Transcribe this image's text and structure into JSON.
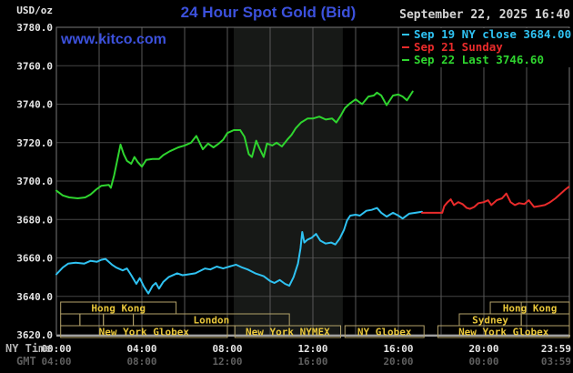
{
  "header": {
    "units_label": "USD/oz",
    "title": "24 Hour Spot Gold (Bid)",
    "title_color": "#3c51dc",
    "datetime": "September 22, 2025 16:40",
    "datetime_color": "#d5d5d5",
    "watermark": "www.kitco.com",
    "watermark_color": "#3c51dc"
  },
  "legend": {
    "items": [
      {
        "label": "Sep 19 NY close 3684.00",
        "color": "#2fc2f2"
      },
      {
        "label": "Sep 21 Sunday",
        "color": "#e92b2b"
      },
      {
        "label": "Sep 22 Last 3746.60",
        "color": "#2fd52f"
      }
    ]
  },
  "axes": {
    "y": {
      "label_color": "#e6e6e6",
      "ticks": [
        {
          "v": 3780,
          "label": "3780.0"
        },
        {
          "v": 3760,
          "label": "3760.0"
        },
        {
          "v": 3740,
          "label": "3740.0"
        },
        {
          "v": 3720,
          "label": "3720.0"
        },
        {
          "v": 3700,
          "label": "3700.0"
        },
        {
          "v": 3680,
          "label": "3680.0"
        },
        {
          "v": 3660,
          "label": "3660.0"
        },
        {
          "v": 3640,
          "label": "3640.0"
        },
        {
          "v": 3620,
          "label": "3620.0"
        }
      ]
    },
    "x": {
      "row1_label": "NY Time",
      "row1_color": "#b5b5b5",
      "row1_tick_color": "#e6e6e6",
      "row2_label": "GMT",
      "row2_color": "#5f5f5f",
      "row2_tick_color": "#5f5f5f",
      "ticks": [
        {
          "h": 0,
          "ny": "00:00",
          "gmt": "04:00"
        },
        {
          "h": 4,
          "ny": "04:00",
          "gmt": "08:00"
        },
        {
          "h": 8,
          "ny": "08:00",
          "gmt": "12:00"
        },
        {
          "h": 12,
          "ny": "12:00",
          "gmt": "16:00"
        },
        {
          "h": 16,
          "ny": "16:00",
          "gmt": "20:00"
        },
        {
          "h": 20,
          "ny": "20:00",
          "gmt": "00:00"
        },
        {
          "h": 23.983,
          "ny": "23:59",
          "gmt": "03:59"
        }
      ]
    }
  },
  "sessions": {
    "border_color": "#b3a26a",
    "label_color": "#e8c63a",
    "rows": [
      {
        "boxes": [
          {
            "start": 0.2,
            "end": 5.6,
            "label": "Hong Kong"
          },
          {
            "start": 20.3,
            "end": 24.0,
            "label": "Hong Kong",
            "divider": 21.75
          }
        ]
      },
      {
        "boxes": [
          {
            "start": 0.2,
            "end": 1.1,
            "label": ""
          },
          {
            "start": 1.1,
            "end": 2.2,
            "label": ""
          },
          {
            "start": 2.2,
            "end": 3.6,
            "label": ""
          },
          {
            "start": 3.6,
            "end": 10.9,
            "label": "London"
          },
          {
            "start": 18.85,
            "end": 21.75,
            "label": "Sydney"
          },
          {
            "start": 21.75,
            "end": 24.0,
            "label": ""
          }
        ]
      },
      {
        "boxes": [
          {
            "start": 0.2,
            "end": 8.0,
            "label": "New York Globex"
          },
          {
            "start": 8.35,
            "end": 13.3,
            "label": "New York NYMEX"
          },
          {
            "start": 13.5,
            "end": 17.2,
            "label": "NY Globex"
          },
          {
            "start": 17.85,
            "end": 24.0,
            "label": "New York Globex"
          }
        ]
      }
    ]
  },
  "chart_data": {
    "type": "line",
    "title": "24 Hour Spot Gold (Bid)",
    "xlabel": "NY Time (hours 00:00-23:59)",
    "ylabel": "USD/oz",
    "ylim": [
      3620,
      3780
    ],
    "xlim_hours": [
      0,
      24
    ],
    "grid": true,
    "grid_color": "#454545",
    "vgrid_color": "#585858",
    "border_color": "#787878",
    "baseline_color": "#a0a0a0",
    "band_color": "#171917",
    "highlight_band_hours": [
      8.3,
      13.4
    ],
    "series": [
      {
        "name": "Sep 19 NY close 3684.00",
        "color": "#2fc2f2",
        "points": [
          [
            0,
            3651.5
          ],
          [
            0.3,
            3655
          ],
          [
            0.55,
            3657
          ],
          [
            0.9,
            3657.5
          ],
          [
            1.3,
            3657
          ],
          [
            1.6,
            3658.5
          ],
          [
            1.9,
            3658
          ],
          [
            2.1,
            3659
          ],
          [
            2.3,
            3659.5
          ],
          [
            2.6,
            3656.5
          ],
          [
            2.8,
            3655
          ],
          [
            3.1,
            3653.5
          ],
          [
            3.3,
            3654.5
          ],
          [
            3.5,
            3651
          ],
          [
            3.74,
            3646.5
          ],
          [
            3.9,
            3649.5
          ],
          [
            4.1,
            3645
          ],
          [
            4.3,
            3641.5
          ],
          [
            4.5,
            3645.5
          ],
          [
            4.65,
            3647
          ],
          [
            4.8,
            3644
          ],
          [
            5.0,
            3647.5
          ],
          [
            5.25,
            3650
          ],
          [
            5.65,
            3652
          ],
          [
            5.9,
            3651
          ],
          [
            6.2,
            3651.5
          ],
          [
            6.5,
            3652
          ],
          [
            6.95,
            3654.5
          ],
          [
            7.2,
            3654
          ],
          [
            7.5,
            3655.5
          ],
          [
            7.8,
            3654.5
          ],
          [
            8.1,
            3655.5
          ],
          [
            8.4,
            3656.5
          ],
          [
            8.7,
            3655
          ],
          [
            8.95,
            3654
          ],
          [
            9.3,
            3652
          ],
          [
            9.7,
            3650.5
          ],
          [
            10.0,
            3648
          ],
          [
            10.2,
            3647
          ],
          [
            10.45,
            3648.5
          ],
          [
            10.7,
            3646.5
          ],
          [
            10.9,
            3645.5
          ],
          [
            11.1,
            3650
          ],
          [
            11.3,
            3657
          ],
          [
            11.42,
            3665
          ],
          [
            11.5,
            3673.5
          ],
          [
            11.6,
            3668
          ],
          [
            11.75,
            3669.5
          ],
          [
            11.95,
            3670.5
          ],
          [
            12.15,
            3672.5
          ],
          [
            12.35,
            3669
          ],
          [
            12.6,
            3667.5
          ],
          [
            12.85,
            3668
          ],
          [
            13.05,
            3667
          ],
          [
            13.25,
            3670
          ],
          [
            13.45,
            3674.5
          ],
          [
            13.6,
            3679.5
          ],
          [
            13.75,
            3682
          ],
          [
            14.0,
            3682.5
          ],
          [
            14.2,
            3682
          ],
          [
            14.5,
            3684.5
          ],
          [
            14.75,
            3685
          ],
          [
            15.0,
            3686
          ],
          [
            15.2,
            3683.5
          ],
          [
            15.45,
            3681.5
          ],
          [
            15.75,
            3683.5
          ],
          [
            16.0,
            3682
          ],
          [
            16.2,
            3680.5
          ],
          [
            16.5,
            3683
          ],
          [
            16.8,
            3683.5
          ],
          [
            17.1,
            3684
          ]
        ]
      },
      {
        "name": "Sep 21 Sunday",
        "color": "#e92b2b",
        "points": [
          [
            17.1,
            3683.5
          ],
          [
            17.7,
            3683.5
          ],
          [
            18.05,
            3683.5
          ],
          [
            18.15,
            3687
          ],
          [
            18.3,
            3689
          ],
          [
            18.45,
            3690.5
          ],
          [
            18.6,
            3687.5
          ],
          [
            18.8,
            3689
          ],
          [
            19.0,
            3688
          ],
          [
            19.2,
            3686
          ],
          [
            19.35,
            3685.5
          ],
          [
            19.55,
            3686.5
          ],
          [
            19.75,
            3688.5
          ],
          [
            20.0,
            3689
          ],
          [
            20.2,
            3690
          ],
          [
            20.35,
            3687.5
          ],
          [
            20.6,
            3690
          ],
          [
            20.85,
            3691
          ],
          [
            21.05,
            3693.5
          ],
          [
            21.25,
            3689
          ],
          [
            21.45,
            3687.5
          ],
          [
            21.65,
            3688.5
          ],
          [
            21.9,
            3688
          ],
          [
            22.1,
            3690
          ],
          [
            22.35,
            3686.5
          ],
          [
            22.6,
            3687
          ],
          [
            22.85,
            3687.5
          ],
          [
            23.1,
            3689
          ],
          [
            23.35,
            3691
          ],
          [
            23.6,
            3693.5
          ],
          [
            23.8,
            3695.5
          ],
          [
            23.98,
            3697
          ]
        ]
      },
      {
        "name": "Sep 22 Last 3746.60",
        "color": "#2fd52f",
        "points": [
          [
            0,
            3695
          ],
          [
            0.3,
            3692.5
          ],
          [
            0.6,
            3691.5
          ],
          [
            1.0,
            3691
          ],
          [
            1.35,
            3691.5
          ],
          [
            1.6,
            3693
          ],
          [
            1.85,
            3695.5
          ],
          [
            2.1,
            3697.5
          ],
          [
            2.45,
            3698
          ],
          [
            2.55,
            3696.5
          ],
          [
            2.7,
            3703
          ],
          [
            2.85,
            3711
          ],
          [
            3.0,
            3719
          ],
          [
            3.15,
            3714
          ],
          [
            3.3,
            3710.5
          ],
          [
            3.5,
            3709
          ],
          [
            3.65,
            3712.5
          ],
          [
            3.8,
            3710
          ],
          [
            4.0,
            3707.5
          ],
          [
            4.2,
            3711
          ],
          [
            4.5,
            3711.5
          ],
          [
            4.8,
            3711.5
          ],
          [
            5.0,
            3713.5
          ],
          [
            5.3,
            3715.5
          ],
          [
            5.7,
            3717.5
          ],
          [
            6.0,
            3718.5
          ],
          [
            6.3,
            3720
          ],
          [
            6.55,
            3723.5
          ],
          [
            6.85,
            3716.5
          ],
          [
            7.1,
            3719.5
          ],
          [
            7.35,
            3717.5
          ],
          [
            7.6,
            3719.5
          ],
          [
            7.8,
            3721.5
          ],
          [
            8.0,
            3725
          ],
          [
            8.3,
            3726.5
          ],
          [
            8.6,
            3726.5
          ],
          [
            8.8,
            3723
          ],
          [
            9.0,
            3714
          ],
          [
            9.15,
            3712.5
          ],
          [
            9.35,
            3721
          ],
          [
            9.5,
            3717
          ],
          [
            9.7,
            3712.5
          ],
          [
            9.85,
            3719.5
          ],
          [
            10.1,
            3718.5
          ],
          [
            10.3,
            3720
          ],
          [
            10.55,
            3718
          ],
          [
            10.8,
            3721.5
          ],
          [
            11.0,
            3724
          ],
          [
            11.2,
            3727.5
          ],
          [
            11.45,
            3730.5
          ],
          [
            11.75,
            3732.5
          ],
          [
            12.0,
            3732.5
          ],
          [
            12.3,
            3733.5
          ],
          [
            12.6,
            3732
          ],
          [
            12.9,
            3732.5
          ],
          [
            13.1,
            3730.5
          ],
          [
            13.3,
            3734
          ],
          [
            13.5,
            3738
          ],
          [
            13.75,
            3740.5
          ],
          [
            14.0,
            3742.5
          ],
          [
            14.3,
            3740
          ],
          [
            14.6,
            3744
          ],
          [
            14.85,
            3744.5
          ],
          [
            15.0,
            3746
          ],
          [
            15.2,
            3744.5
          ],
          [
            15.45,
            3739.5
          ],
          [
            15.75,
            3744.5
          ],
          [
            16.0,
            3745
          ],
          [
            16.2,
            3744
          ],
          [
            16.4,
            3742
          ],
          [
            16.55,
            3744.5
          ],
          [
            16.67,
            3746.6
          ]
        ]
      }
    ]
  }
}
